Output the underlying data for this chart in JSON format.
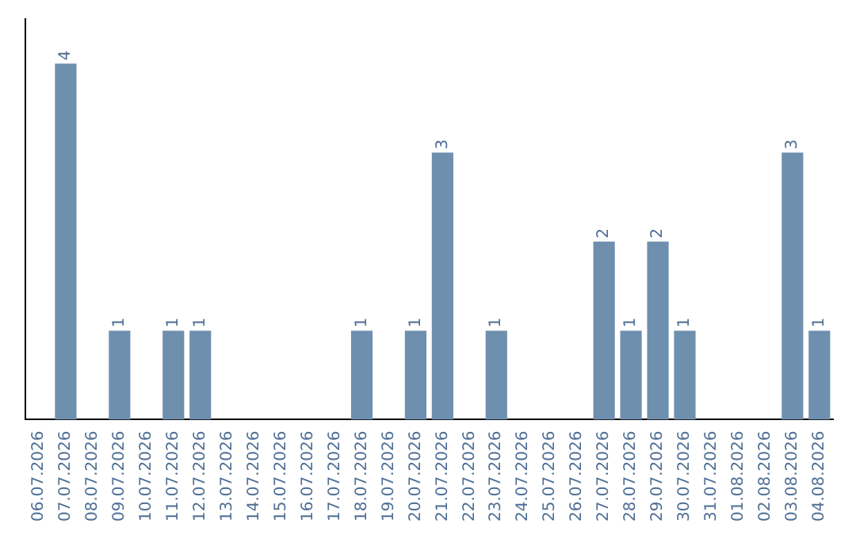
{
  "chart_data": {
    "type": "bar",
    "categories": [
      "06.07.2026",
      "07.07.2026",
      "08.07.2026",
      "09.07.2026",
      "10.07.2026",
      "11.07.2026",
      "12.07.2026",
      "13.07.2026",
      "14.07.2026",
      "15.07.2026",
      "16.07.2026",
      "17.07.2026",
      "18.07.2026",
      "19.07.2026",
      "20.07.2026",
      "21.07.2026",
      "22.07.2026",
      "23.07.2026",
      "24.07.2026",
      "25.07.2026",
      "26.07.2026",
      "27.07.2026",
      "28.07.2026",
      "29.07.2026",
      "30.07.2026",
      "31.07.2026",
      "01.08.2026",
      "02.08.2026",
      "03.08.2026",
      "04.08.2026"
    ],
    "values": [
      0,
      4,
      0,
      1,
      0,
      1,
      1,
      0,
      0,
      0,
      0,
      0,
      1,
      0,
      1,
      3,
      0,
      1,
      0,
      0,
      0,
      2,
      1,
      2,
      1,
      0,
      0,
      0,
      3,
      1
    ],
    "value_labels": [
      null,
      "4",
      null,
      "1",
      null,
      "1",
      "1",
      null,
      null,
      null,
      null,
      null,
      "1",
      null,
      "1",
      "3",
      null,
      "1",
      null,
      null,
      null,
      "2",
      "1",
      "2",
      "1",
      null,
      null,
      null,
      "3",
      "1"
    ],
    "color": "#6f8fae",
    "tick_labels": "x"
  }
}
